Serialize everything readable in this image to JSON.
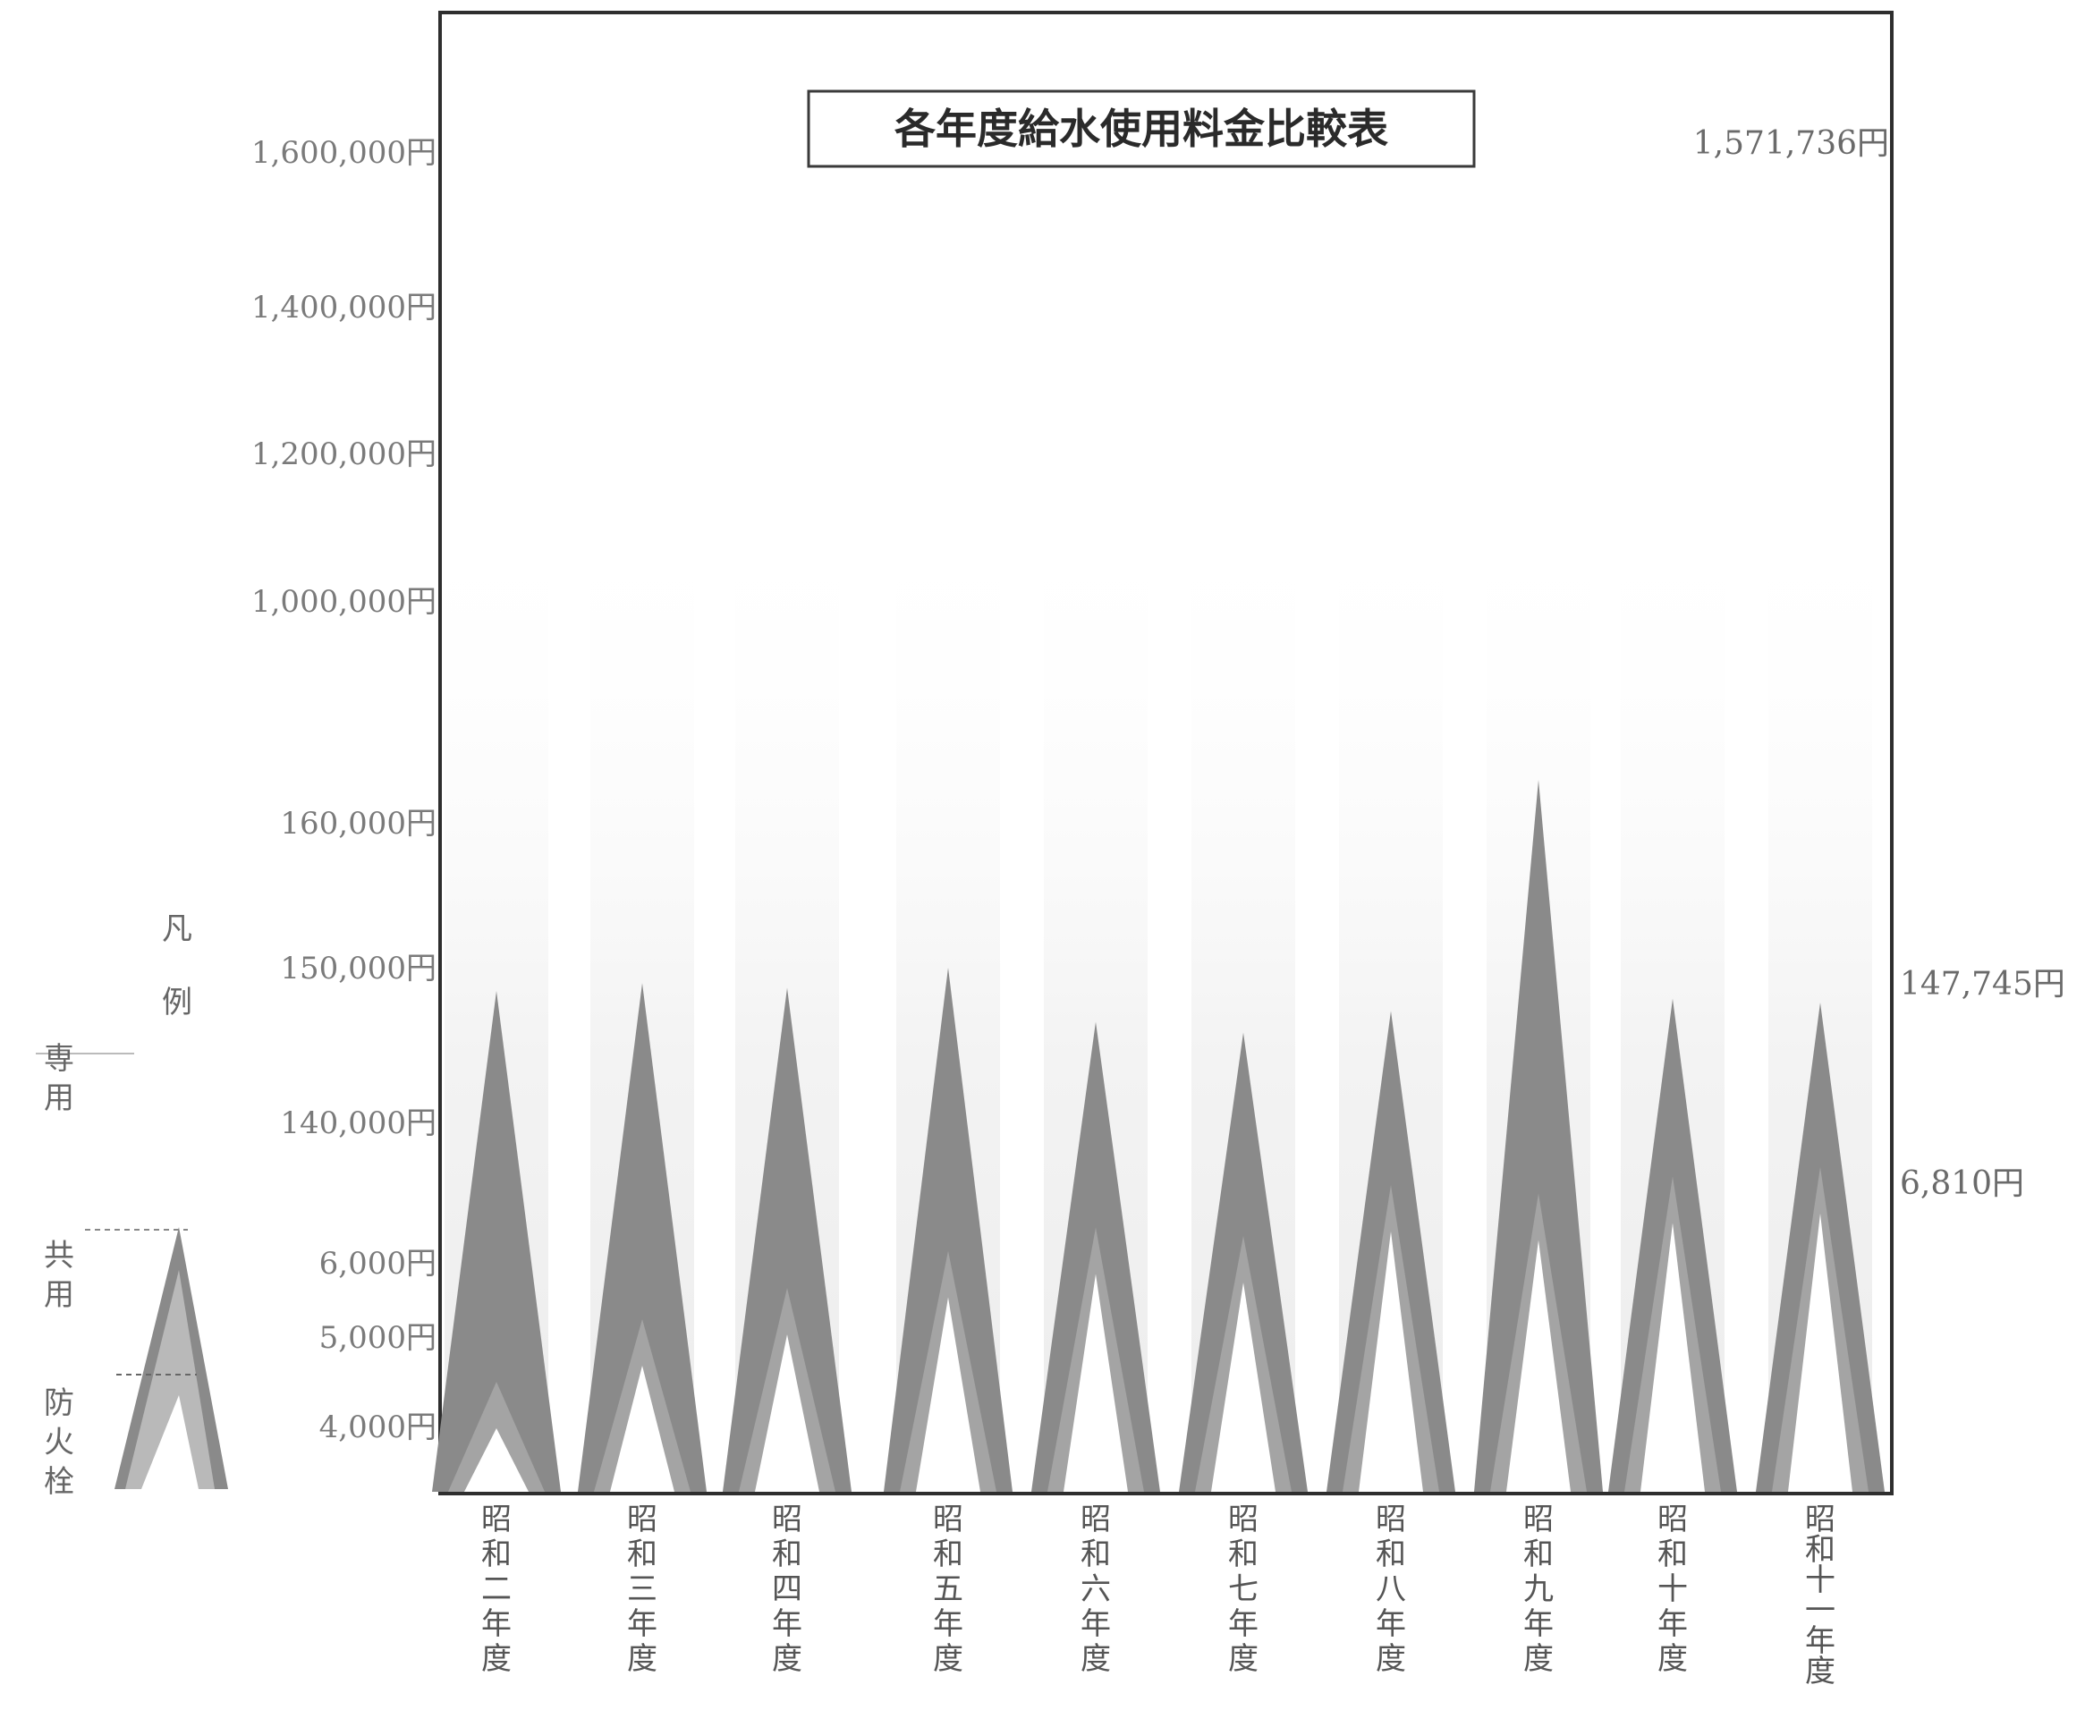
{
  "chart_data": {
    "type": "area",
    "title": "各年度給水使用料金比較表",
    "categories": [
      "昭和二年度",
      "昭和三年度",
      "昭和四年度",
      "昭和五年度",
      "昭和六年度",
      "昭和七年度",
      "昭和八年度",
      "昭和九年度",
      "昭和十年度",
      "昭和十一年度"
    ],
    "y_tick_labels": [
      "1,600,000円",
      "1,400,000円",
      "1,200,000円",
      "1,000,000円",
      "160,000円",
      "150,000円",
      "140,000円",
      "6,000円",
      "5,000円",
      "4,000円"
    ],
    "axis_segments": [
      {
        "from": 3000,
        "to": 7000,
        "tick_values": [
          4000,
          5000,
          6000
        ]
      },
      {
        "from": 130000,
        "to": 165000,
        "tick_values": [
          140000,
          150000,
          160000
        ]
      },
      {
        "from": 900000,
        "to": 1700000,
        "tick_values": [
          1000000,
          1200000,
          1400000,
          1600000
        ]
      }
    ],
    "series": [
      {
        "name": "専用",
        "color": "#8a8a8a",
        "values": [
          148500,
          149000,
          148700,
          150000,
          146500,
          145800,
          147200,
          163000,
          148000,
          147745
        ]
      },
      {
        "name": "共用",
        "color": "#a4a4a4",
        "values": [
          4200,
          4900,
          5300,
          5800,
          6100,
          6000,
          6600,
          6500,
          6700,
          6810
        ]
      },
      {
        "name": "防火栓",
        "color": "#ffffff",
        "values": [
          null,
          null,
          null,
          null,
          null,
          null,
          null,
          null,
          null,
          null
        ]
      }
    ],
    "annotations": [
      {
        "text": "1,571,736円",
        "value": 1571736
      },
      {
        "text": "147,745円",
        "value": 147745
      },
      {
        "text": "6,810円",
        "value": 6810
      }
    ],
    "legend": {
      "title": "凡例",
      "position": "left"
    },
    "grid": false
  }
}
